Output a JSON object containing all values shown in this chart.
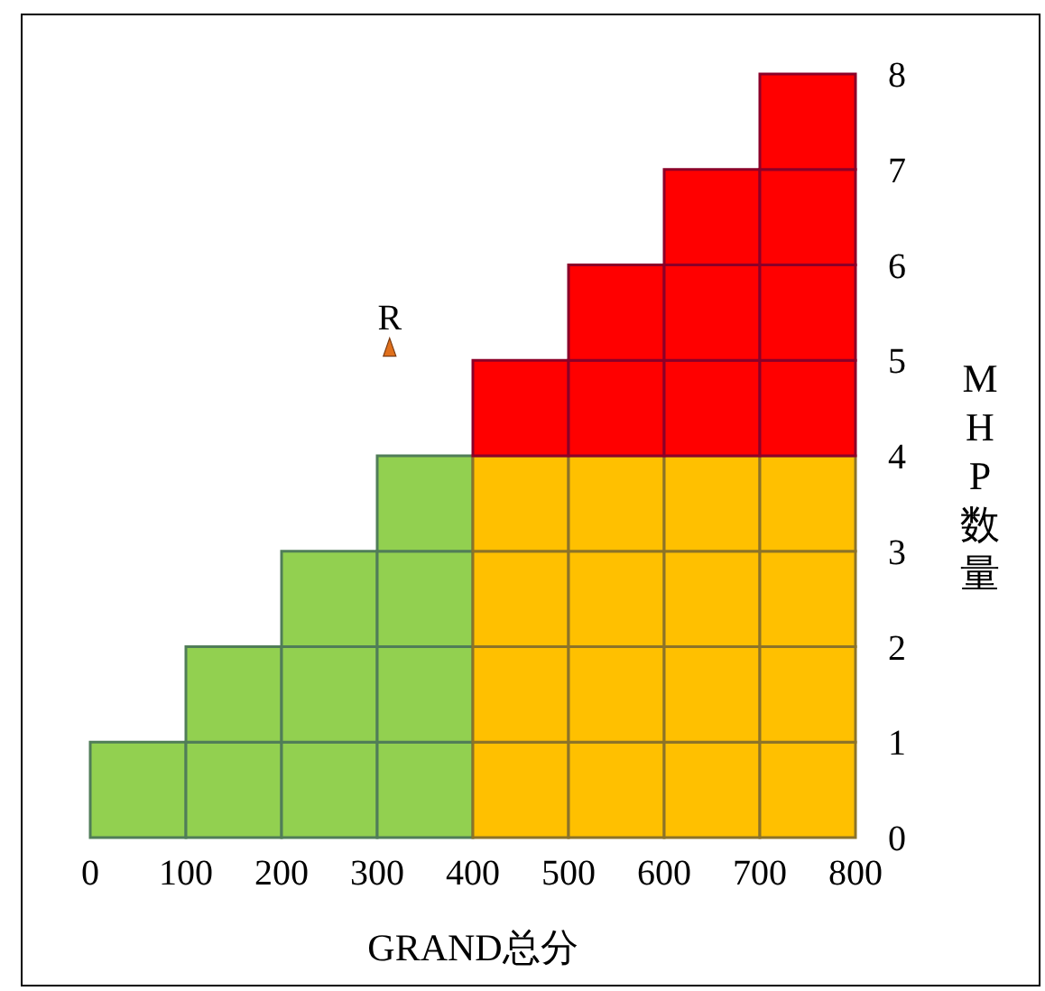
{
  "chart_data": {
    "type": "bar",
    "stacked": true,
    "xlabel": "GRAND总分",
    "ylabel": "MHP数量",
    "x": [
      50,
      150,
      250,
      350,
      450,
      550,
      650,
      750
    ],
    "xlim": [
      0,
      800
    ],
    "xticks": [
      0,
      100,
      200,
      300,
      400,
      500,
      600,
      700,
      800
    ],
    "ylim": [
      0,
      8
    ],
    "yticks": [
      0,
      1,
      2,
      3,
      4,
      5,
      6,
      7,
      8
    ],
    "series": [
      {
        "values": [
          1,
          1,
          1,
          1,
          1,
          1,
          1,
          1
        ],
        "colors": [
          "#92d050",
          "#92d050",
          "#92d050",
          "#92d050",
          "#ffc000",
          "#ffc000",
          "#ffc000",
          "#ffc000"
        ]
      },
      {
        "values": [
          null,
          1,
          1,
          1,
          1,
          1,
          1,
          1
        ],
        "colors": [
          null,
          "#92d050",
          "#92d050",
          "#92d050",
          "#ffc000",
          "#ffc000",
          "#ffc000",
          "#ffc000"
        ]
      },
      {
        "values": [
          null,
          null,
          1,
          1,
          1,
          1,
          1,
          1
        ],
        "colors": [
          null,
          null,
          "#92d050",
          "#92d050",
          "#ffc000",
          "#ffc000",
          "#ffc000",
          "#ffc000"
        ]
      },
      {
        "values": [
          null,
          null,
          null,
          1,
          1,
          1,
          1,
          1
        ],
        "colors": [
          null,
          null,
          null,
          "#92d050",
          "#ffc000",
          "#ffc000",
          "#ffc000",
          "#ffc000"
        ]
      },
      {
        "values": [
          null,
          null,
          null,
          null,
          1,
          1,
          1,
          1
        ],
        "colors": [
          null,
          null,
          null,
          null,
          "#ff0000",
          "#ff0000",
          "#ff0000",
          "#ff0000"
        ]
      },
      {
        "values": [
          null,
          null,
          null,
          null,
          null,
          1,
          1,
          1
        ],
        "colors": [
          null,
          null,
          null,
          null,
          null,
          "#ff0000",
          "#ff0000",
          "#ff0000"
        ]
      },
      {
        "values": [
          null,
          null,
          null,
          null,
          null,
          null,
          1,
          1
        ],
        "colors": [
          null,
          null,
          null,
          null,
          null,
          null,
          "#ff0000",
          "#ff0000"
        ]
      },
      {
        "values": [
          null,
          null,
          null,
          null,
          null,
          null,
          null,
          1
        ],
        "colors": [
          null,
          null,
          null,
          null,
          null,
          null,
          null,
          "#ff0000"
        ]
      },
      {
        "type": "scatter",
        "name": "R",
        "marker": "triangle",
        "color": "#e0701c",
        "x": [
          313
        ],
        "values": [
          5.1
        ]
      }
    ]
  }
}
